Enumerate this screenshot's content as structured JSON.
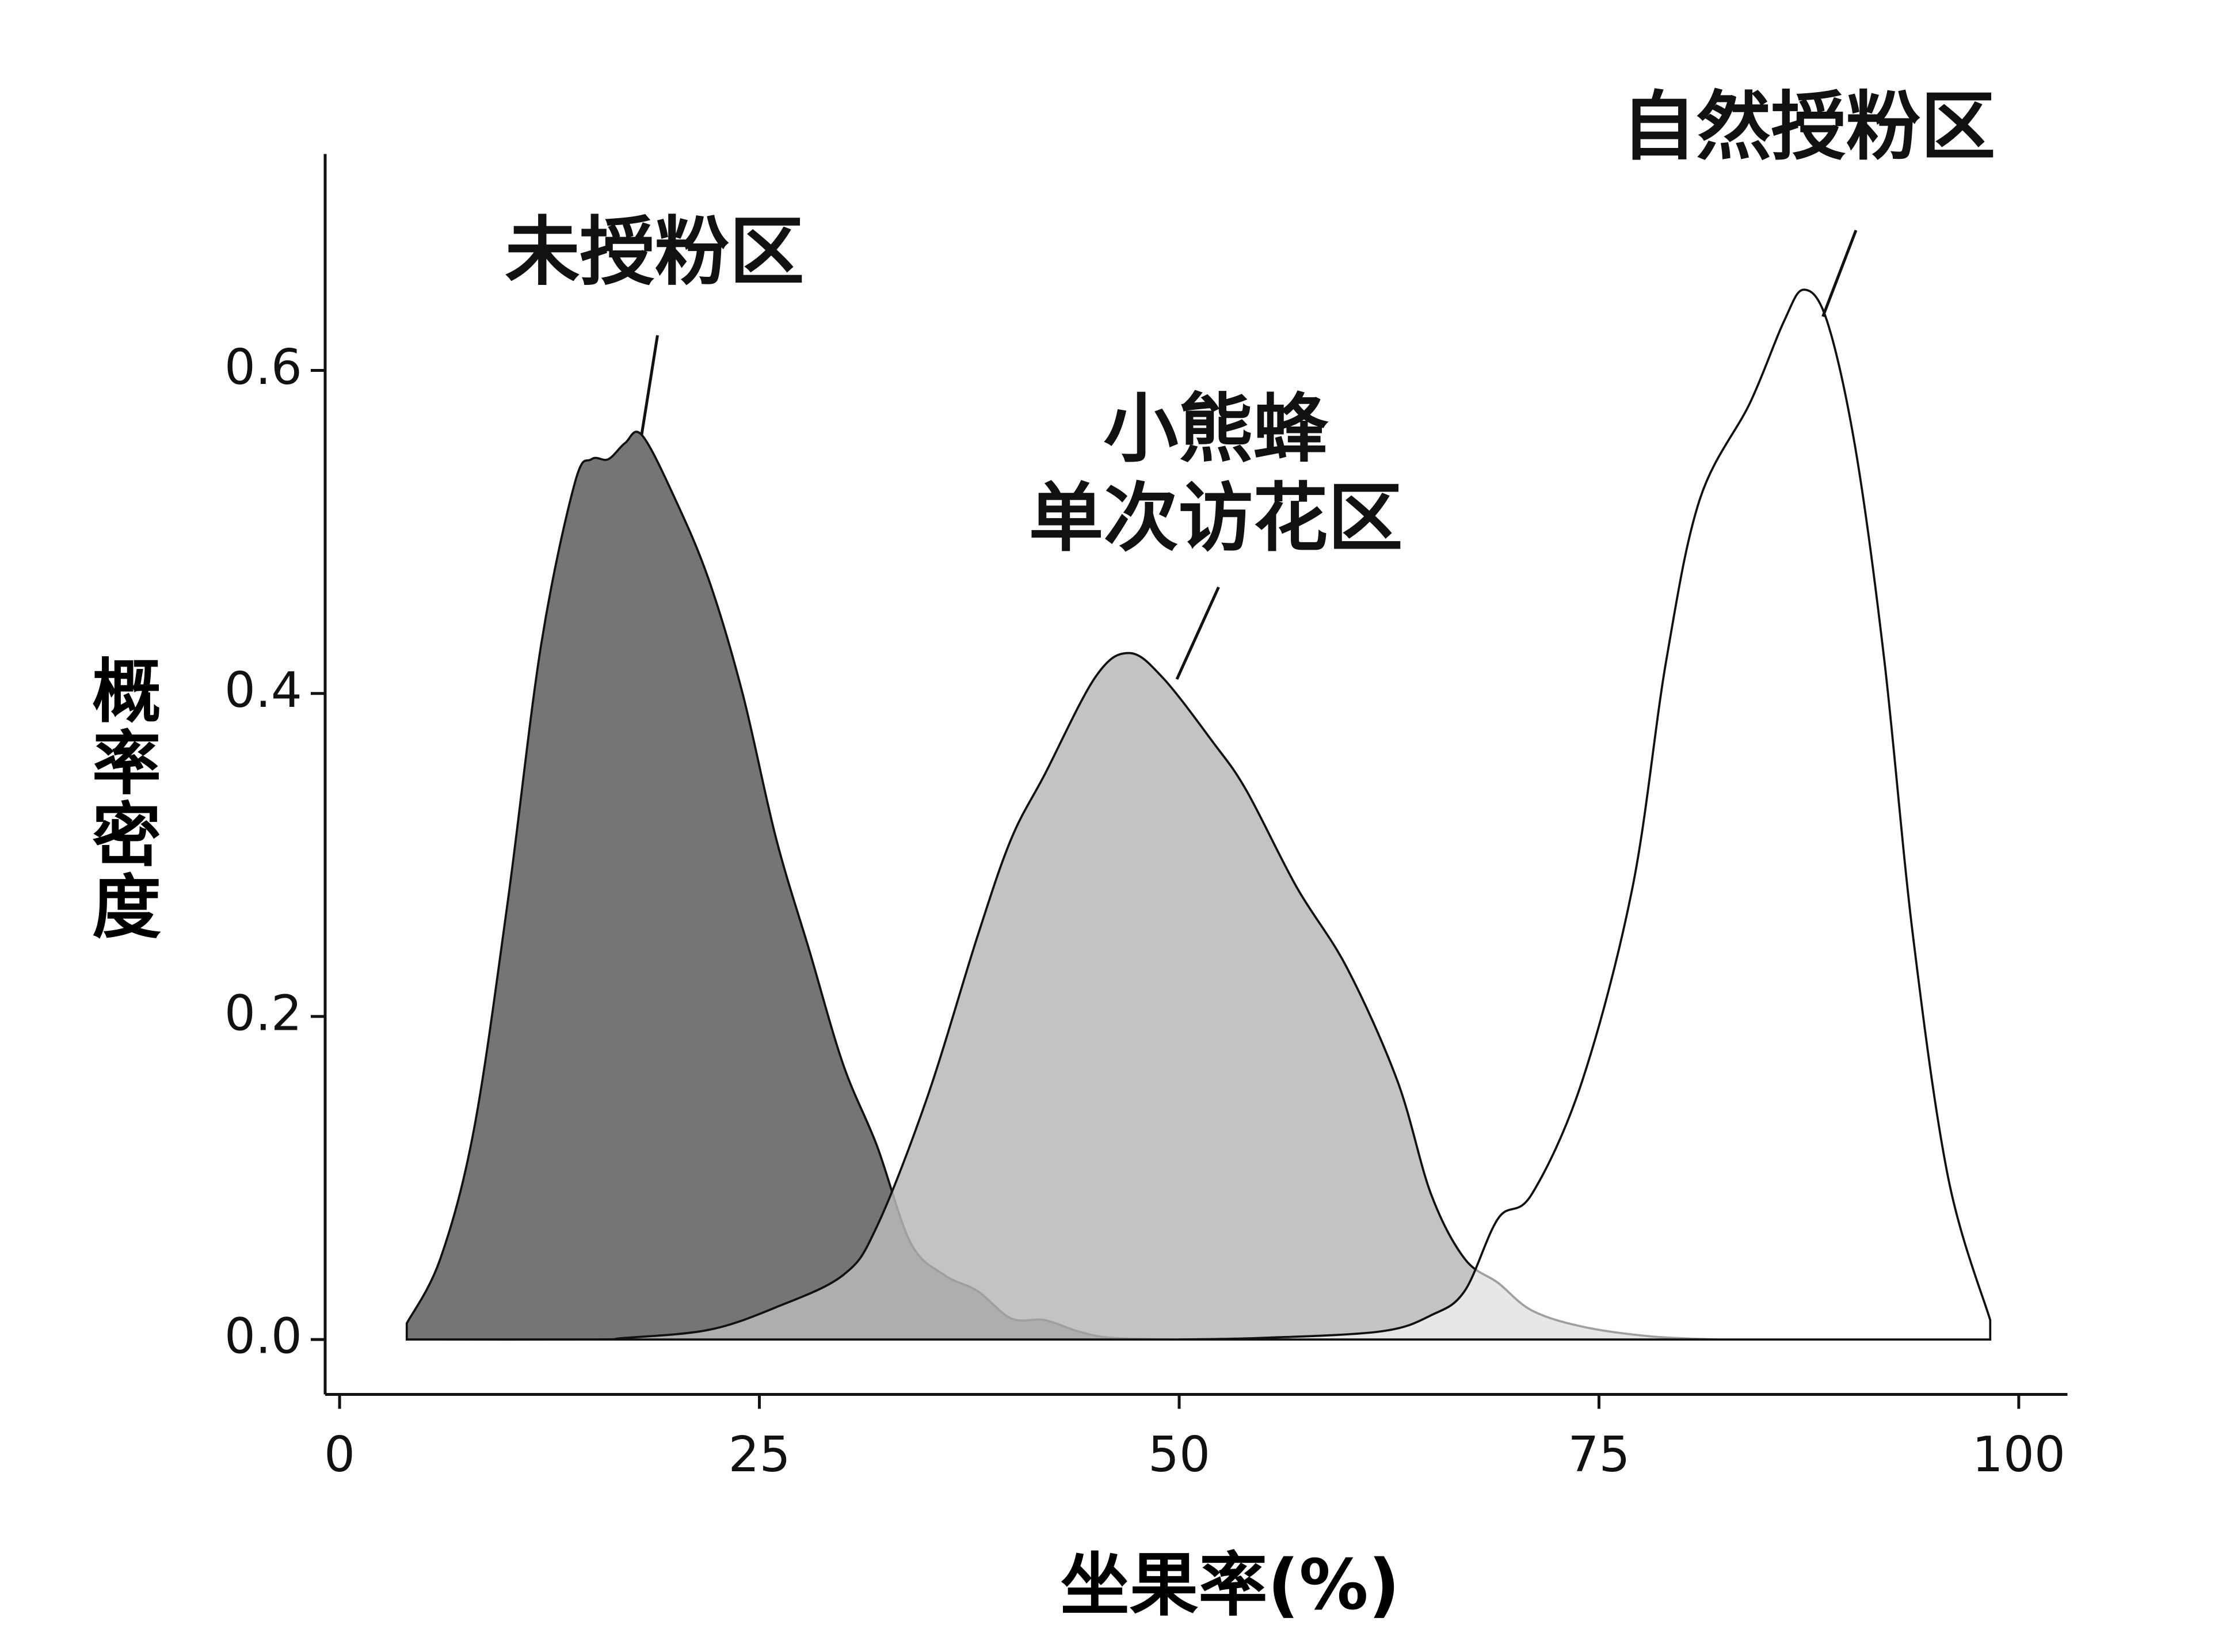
{
  "chart_data": {
    "type": "density",
    "xlabel": "坐果率(%)",
    "ylabel": "概率密度",
    "xlim": [
      -0.86,
      102.9
    ],
    "ylim": [
      -0.034,
      0.734
    ],
    "xticks": [
      0,
      25,
      50,
      75,
      100
    ],
    "yticks": [
      {
        "value": 0,
        "label": "0.0"
      },
      0.2,
      0.4,
      0.6
    ],
    "series": [
      {
        "name": "未授粉区",
        "color": "#757575",
        "x": [
          4,
          6,
          8,
          10,
          12,
          14,
          15,
          16,
          17,
          18,
          20,
          22,
          24,
          26,
          28,
          30,
          32,
          34,
          36,
          38,
          40,
          42,
          44,
          46,
          50
        ],
        "values": [
          0.01,
          0.05,
          0.13,
          0.27,
          0.43,
          0.53,
          0.545,
          0.545,
          0.555,
          0.56,
          0.52,
          0.47,
          0.4,
          0.31,
          0.24,
          0.17,
          0.12,
          0.06,
          0.04,
          0.03,
          0.013,
          0.012,
          0.005,
          0.001,
          0
        ]
      },
      {
        "name": "小熊蜂\n单次访花区",
        "color": "#b8b8b8",
        "x": [
          4,
          15,
          17,
          22,
          26,
          30,
          32,
          35,
          38,
          40,
          42,
          45,
          47,
          49,
          52,
          54,
          57,
          60,
          63,
          65,
          67,
          69,
          71,
          74,
          78,
          82
        ],
        "values": [
          0,
          0,
          0.001,
          0.006,
          0.02,
          0.04,
          0.07,
          0.15,
          0.25,
          0.31,
          0.35,
          0.41,
          0.425,
          0.41,
          0.37,
          0.34,
          0.28,
          0.23,
          0.16,
          0.09,
          0.05,
          0.035,
          0.018,
          0.008,
          0.002,
          0
        ]
      },
      {
        "name": "自然授粉区",
        "color": "#ffffff",
        "x": [
          50,
          55,
          62,
          65,
          67,
          69,
          71,
          74,
          77,
          79,
          81,
          84,
          86,
          87.2,
          88.6,
          90.3,
          92,
          93.7,
          95.8,
          98.3
        ],
        "values": [
          0,
          0.001,
          0.005,
          0.015,
          0.03,
          0.075,
          0.09,
          0.16,
          0.28,
          0.42,
          0.52,
          0.58,
          0.63,
          0.65,
          0.63,
          0.55,
          0.42,
          0.25,
          0.1,
          0.012
        ]
      }
    ]
  }
}
